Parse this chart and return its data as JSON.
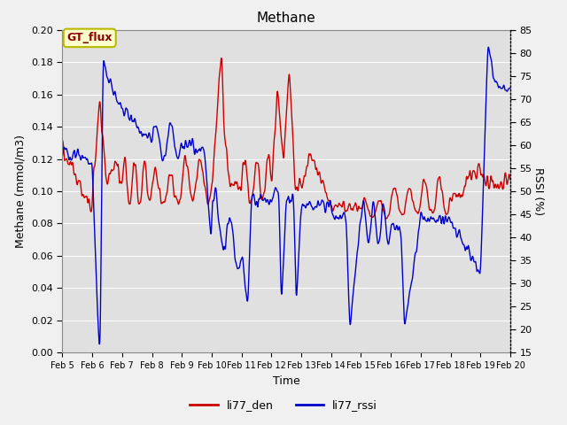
{
  "title": "Methane",
  "xlabel": "Time",
  "ylabel_left": "Methane (mmol/m3)",
  "ylabel_right": "RSSI (%)",
  "legend_label_red": "li77_den",
  "legend_label_blue": "li77_rssi",
  "annotation_text": "GT_flux",
  "annotation_bg": "#ffffcc",
  "annotation_border": "#b8b800",
  "left_ylim": [
    0.0,
    0.2
  ],
  "right_ylim": [
    15,
    85
  ],
  "left_yticks": [
    0.0,
    0.02,
    0.04,
    0.06,
    0.08,
    0.1,
    0.12,
    0.14,
    0.16,
    0.18,
    0.2
  ],
  "right_yticks": [
    15,
    20,
    25,
    30,
    35,
    40,
    45,
    50,
    55,
    60,
    65,
    70,
    75,
    80,
    85
  ],
  "xtick_labels": [
    "Feb 5",
    "Feb 6",
    "Feb 7",
    "Feb 8",
    "Feb 9",
    "Feb 10",
    "Feb 11",
    "Feb 12",
    "Feb 13",
    "Feb 14",
    "Feb 15",
    "Feb 16",
    "Feb 17",
    "Feb 18",
    "Feb 19",
    "Feb 20"
  ],
  "color_red": "#cc0000",
  "color_blue": "#0000cc",
  "fig_bg_color": "#f0f0f0",
  "plot_bg_color": "#e0e0e0",
  "grid_color": "#ffffff",
  "linewidth": 1.0,
  "title_fontsize": 11,
  "axis_label_fontsize": 9,
  "tick_fontsize": 8
}
